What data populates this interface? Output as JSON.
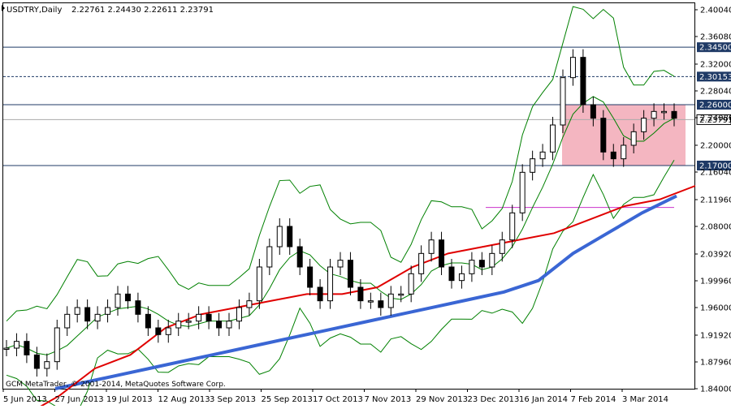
{
  "header": {
    "symbol": "USDTRY,Daily",
    "ohlc": "2.22761 2.24430 2.22611 2.23791"
  },
  "copyright": "GCM MetaTrader, © 2001-2014, MetaQuotes Software Corp.",
  "chart_data": {
    "type": "line",
    "chart_kind": "candlestick",
    "symbol": "USDTRY",
    "timeframe": "Daily",
    "ylim": [
      1.84,
      2.41
    ],
    "y_ticks": [
      "2.40040",
      "2.36080",
      "2.32000",
      "2.28040",
      "2.24080",
      "2.20000",
      "2.16040",
      "2.11960",
      "2.08000",
      "2.03920",
      "1.99960",
      "1.96000",
      "1.91920",
      "1.87960",
      "1.84000"
    ],
    "x_ticks": [
      "5 Jun 2013",
      "27 Jun 2013",
      "19 Jul 2013",
      "12 Aug 2013",
      "3 Sep 2013",
      "25 Sep 2013",
      "17 Oct 2013",
      "7 Nov 2013",
      "29 Nov 2013",
      "23 Dec 2013",
      "16 Jan 2014",
      "7 Feb 2014",
      "3 Mar 2014"
    ],
    "price_levels": [
      {
        "label": "2.34500",
        "value": 2.345,
        "style": "solid"
      },
      {
        "label": "2.30153",
        "value": 2.30153,
        "style": "dashed"
      },
      {
        "label": "2.26000",
        "value": 2.26,
        "style": "solid"
      },
      {
        "label": "2.17000",
        "value": 2.17,
        "style": "solid"
      }
    ],
    "current_price": {
      "label": "2.23791",
      "value": 2.23791
    },
    "magenta_level": 2.108,
    "consolidation_zone": {
      "low": 2.17,
      "high": 2.26,
      "from": "Jan 2014",
      "to": "Mar 2014"
    },
    "indicators": [
      "Bollinger Bands",
      "Moving Average (blue)",
      "Trendline (red)"
    ],
    "series": [
      {
        "values": [
          1.9,
          1.91,
          1.89,
          1.87,
          1.88,
          1.93,
          1.95,
          1.96,
          1.94,
          1.95,
          1.96,
          1.98,
          1.97,
          1.95,
          1.93,
          1.92,
          1.93,
          1.94,
          1.94,
          1.95,
          1.94,
          1.93,
          1.94,
          1.96,
          1.97,
          2.02,
          2.05,
          2.08,
          2.05,
          2.02,
          1.99,
          1.97,
          2.02,
          2.03,
          1.99,
          1.97,
          1.97,
          1.96,
          1.98,
          1.98,
          2.01,
          2.04,
          2.06,
          2.02,
          2.0,
          2.01,
          2.03,
          2.02,
          2.04,
          2.06,
          2.1,
          2.16,
          2.18,
          2.19,
          2.23,
          2.3,
          2.33,
          2.26,
          2.24,
          2.19,
          2.18,
          2.2,
          2.22,
          2.24,
          2.25,
          2.25,
          2.24
        ]
      },
      {
        "values": [
          1.84,
          1.851,
          1.862,
          1.873,
          1.884,
          1.895,
          1.906,
          1.917,
          1.928,
          1.939,
          1.95,
          1.961,
          1.972,
          1.983,
          2.0,
          2.04,
          2.07,
          2.1,
          2.125
        ]
      },
      {
        "values": [
          1.8,
          1.83,
          1.87,
          1.89,
          1.93,
          1.95,
          1.96,
          1.97,
          1.98,
          1.98,
          1.99,
          2.02,
          2.04,
          2.05,
          2.06,
          2.07,
          2.09,
          2.11,
          2.12,
          2.14
        ]
      }
    ]
  }
}
